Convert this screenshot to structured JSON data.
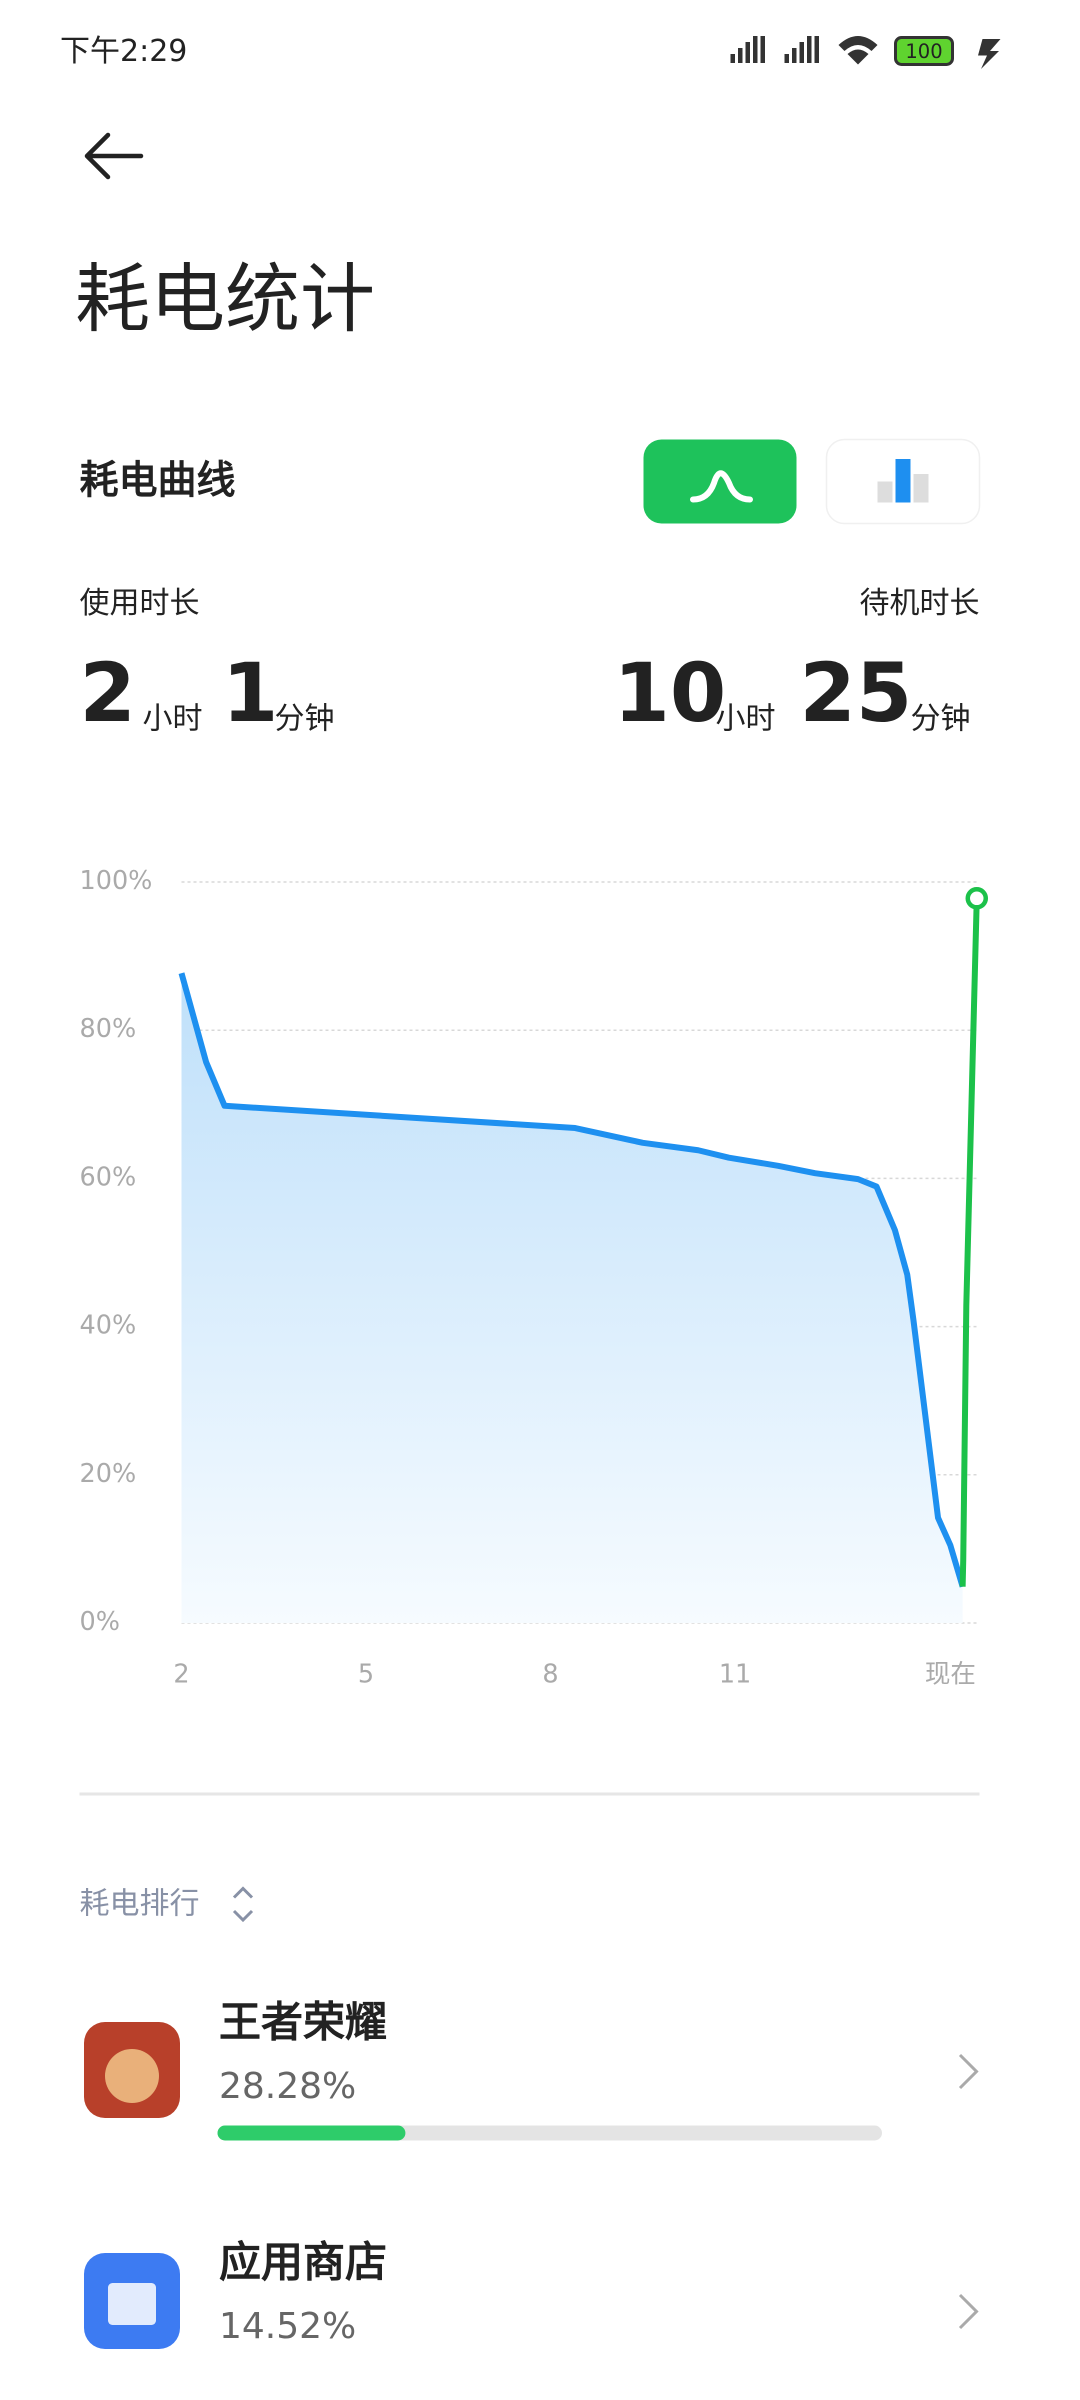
{
  "status_bar": {
    "time": "下午2:29",
    "battery": "100"
  },
  "header": {
    "title": "耗电统计"
  },
  "section": {
    "title": "耗电曲线"
  },
  "usage": {
    "label": "使用时长",
    "hours": 2,
    "hours_unit": "小时",
    "minutes": 1,
    "minutes_unit": "分钟"
  },
  "standby": {
    "label": "待机时长",
    "hours": 10,
    "hours_unit": "小时",
    "minutes": 25,
    "minutes_unit": "分钟"
  },
  "chart_data": {
    "type": "line",
    "xlim": [
      2,
      14.95
    ],
    "ylim": [
      0,
      100
    ],
    "xticks": [
      2,
      5,
      8,
      11,
      {
        "value": 14.5,
        "label": "现在"
      }
    ],
    "yticks": [
      {
        "value": 0,
        "label": "0%"
      },
      {
        "value": 20,
        "label": "20%"
      },
      {
        "value": 40,
        "label": "40%"
      },
      {
        "value": 60,
        "label": "60%"
      },
      {
        "value": 80,
        "label": "80%"
      },
      {
        "value": 100,
        "label": "100%"
      }
    ],
    "grid": true,
    "series": [
      {
        "color": "#1e90f0",
        "area": true,
        "x": [
          2,
          2.4,
          2.7,
          8.4,
          9.5,
          10.4,
          10.9,
          11.7,
          12.3,
          13.0,
          13.3,
          13.6,
          13.8,
          13.9,
          14.3,
          14.5,
          14.7
        ],
        "values": [
          87.7,
          75.7,
          69.8,
          66.8,
          64.8,
          63.8,
          62.8,
          61.7,
          60.7,
          59.9,
          58.9,
          53,
          47,
          40.9,
          14.2,
          10.5,
          4.9
        ]
      },
      {
        "color": "#1cc14a",
        "area": false,
        "x": [
          14.7,
          14.71,
          14.76,
          14.93
        ],
        "values": [
          4.9,
          8.5,
          42.9,
          97.8
        ]
      }
    ]
  },
  "ranking": {
    "title": "耗电排行",
    "apps": [
      {
        "name": "王者荣耀",
        "percent": 28.28,
        "percent_label": "28.28%"
      },
      {
        "name": "应用商店",
        "percent": 14.52,
        "percent_label": "14.52%"
      }
    ]
  }
}
